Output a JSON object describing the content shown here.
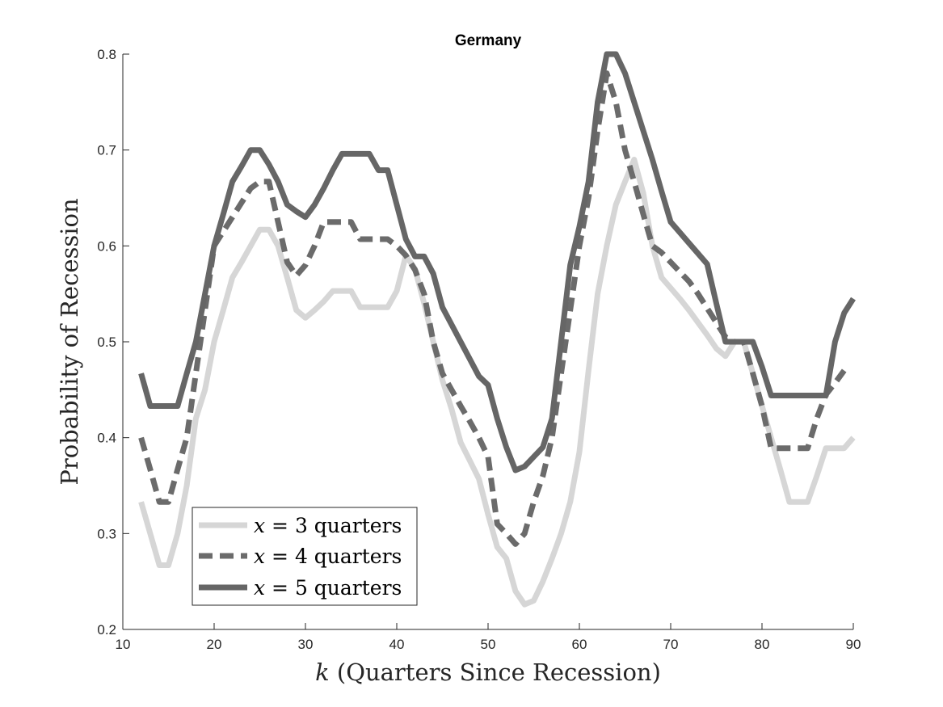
{
  "chart_data": {
    "type": "line",
    "title": "Germany",
    "xlabel_var": "k",
    "xlabel_rest": " (Quarters Since Recession)",
    "ylabel": "Probability of Recession",
    "xlim": [
      10,
      90
    ],
    "ylim": [
      0.2,
      0.8
    ],
    "xticks": [
      10,
      20,
      30,
      40,
      50,
      60,
      70,
      80,
      90
    ],
    "yticks": [
      0.2,
      0.3,
      0.4,
      0.5,
      0.6,
      0.7,
      0.8
    ],
    "legend_position": "bottom-left",
    "grid": false,
    "series": [
      {
        "name": "x = 3 quarters",
        "legend_var": "x",
        "legend_rest": " = 3 quarters",
        "color": "#d6d6d6",
        "style": "solid",
        "points": [
          [
            12,
            0.333
          ],
          [
            13,
            0.3
          ],
          [
            14,
            0.267
          ],
          [
            15,
            0.267
          ],
          [
            16,
            0.3
          ],
          [
            17,
            0.35
          ],
          [
            18,
            0.42
          ],
          [
            19,
            0.45
          ],
          [
            20,
            0.5
          ],
          [
            21,
            0.533
          ],
          [
            22,
            0.567
          ],
          [
            23,
            0.583
          ],
          [
            24,
            0.6
          ],
          [
            25,
            0.617
          ],
          [
            26,
            0.617
          ],
          [
            27,
            0.6
          ],
          [
            28,
            0.567
          ],
          [
            29,
            0.533
          ],
          [
            30,
            0.525
          ],
          [
            31,
            0.533
          ],
          [
            32,
            0.542
          ],
          [
            33,
            0.553
          ],
          [
            34,
            0.553
          ],
          [
            35,
            0.553
          ],
          [
            36,
            0.536
          ],
          [
            37,
            0.536
          ],
          [
            38,
            0.536
          ],
          [
            39,
            0.536
          ],
          [
            40,
            0.553
          ],
          [
            41,
            0.59
          ],
          [
            42,
            0.576
          ],
          [
            43,
            0.54
          ],
          [
            44,
            0.5
          ],
          [
            45,
            0.46
          ],
          [
            46,
            0.43
          ],
          [
            47,
            0.395
          ],
          [
            48,
            0.376
          ],
          [
            49,
            0.357
          ],
          [
            50,
            0.32
          ],
          [
            51,
            0.286
          ],
          [
            52,
            0.274
          ],
          [
            53,
            0.24
          ],
          [
            54,
            0.226
          ],
          [
            55,
            0.23
          ],
          [
            56,
            0.25
          ],
          [
            57,
            0.274
          ],
          [
            58,
            0.3
          ],
          [
            59,
            0.333
          ],
          [
            60,
            0.385
          ],
          [
            61,
            0.47
          ],
          [
            62,
            0.55
          ],
          [
            63,
            0.6
          ],
          [
            64,
            0.643
          ],
          [
            65,
            0.667
          ],
          [
            66,
            0.69
          ],
          [
            67,
            0.655
          ],
          [
            68,
            0.6
          ],
          [
            69,
            0.567
          ],
          [
            70,
            0.556
          ],
          [
            71,
            0.545
          ],
          [
            72,
            0.533
          ],
          [
            73,
            0.52
          ],
          [
            74,
            0.507
          ],
          [
            75,
            0.493
          ],
          [
            76,
            0.485
          ],
          [
            77,
            0.5
          ],
          [
            78,
            0.5
          ],
          [
            79,
            0.467
          ],
          [
            80,
            0.433
          ],
          [
            81,
            0.4
          ],
          [
            82,
            0.367
          ],
          [
            83,
            0.333
          ],
          [
            84,
            0.333
          ],
          [
            85,
            0.333
          ],
          [
            86,
            0.36
          ],
          [
            87,
            0.389
          ],
          [
            88,
            0.389
          ],
          [
            89,
            0.389
          ],
          [
            90,
            0.4
          ]
        ]
      },
      {
        "name": "x = 4 quarters",
        "legend_var": "x",
        "legend_rest": " = 4 quarters",
        "color": "#6b6b6b",
        "style": "dashed",
        "points": [
          [
            12,
            0.4
          ],
          [
            13,
            0.367
          ],
          [
            14,
            0.333
          ],
          [
            15,
            0.333
          ],
          [
            16,
            0.367
          ],
          [
            17,
            0.4
          ],
          [
            18,
            0.467
          ],
          [
            19,
            0.533
          ],
          [
            20,
            0.6
          ],
          [
            21,
            0.615
          ],
          [
            22,
            0.63
          ],
          [
            23,
            0.645
          ],
          [
            24,
            0.66
          ],
          [
            25,
            0.667
          ],
          [
            26,
            0.667
          ],
          [
            27,
            0.625
          ],
          [
            28,
            0.583
          ],
          [
            29,
            0.569
          ],
          [
            30,
            0.58
          ],
          [
            31,
            0.6
          ],
          [
            32,
            0.625
          ],
          [
            33,
            0.625
          ],
          [
            34,
            0.625
          ],
          [
            35,
            0.625
          ],
          [
            36,
            0.607
          ],
          [
            37,
            0.607
          ],
          [
            38,
            0.607
          ],
          [
            39,
            0.607
          ],
          [
            40,
            0.6
          ],
          [
            41,
            0.59
          ],
          [
            42,
            0.575
          ],
          [
            43,
            0.55
          ],
          [
            44,
            0.5
          ],
          [
            45,
            0.467
          ],
          [
            46,
            0.45
          ],
          [
            47,
            0.433
          ],
          [
            48,
            0.417
          ],
          [
            49,
            0.4
          ],
          [
            50,
            0.38
          ],
          [
            51,
            0.31
          ],
          [
            52,
            0.3
          ],
          [
            53,
            0.289
          ],
          [
            54,
            0.3
          ],
          [
            55,
            0.333
          ],
          [
            56,
            0.36
          ],
          [
            57,
            0.4
          ],
          [
            58,
            0.467
          ],
          [
            59,
            0.533
          ],
          [
            60,
            0.6
          ],
          [
            61,
            0.65
          ],
          [
            62,
            0.72
          ],
          [
            63,
            0.78
          ],
          [
            64,
            0.75
          ],
          [
            65,
            0.7
          ],
          [
            66,
            0.667
          ],
          [
            67,
            0.633
          ],
          [
            68,
            0.6
          ],
          [
            69,
            0.593
          ],
          [
            70,
            0.583
          ],
          [
            71,
            0.573
          ],
          [
            72,
            0.563
          ],
          [
            73,
            0.55
          ],
          [
            74,
            0.535
          ],
          [
            75,
            0.52
          ],
          [
            76,
            0.505
          ],
          [
            77,
            0.5
          ],
          [
            78,
            0.5
          ],
          [
            79,
            0.467
          ],
          [
            80,
            0.433
          ],
          [
            81,
            0.389
          ],
          [
            82,
            0.389
          ],
          [
            83,
            0.389
          ],
          [
            84,
            0.389
          ],
          [
            85,
            0.389
          ],
          [
            86,
            0.42
          ],
          [
            87,
            0.445
          ],
          [
            88,
            0.457
          ],
          [
            89,
            0.47
          ]
        ]
      },
      {
        "name": "x = 5 quarters",
        "legend_var": "x",
        "legend_rest": " = 5 quarters",
        "color": "#666666",
        "style": "solid",
        "points": [
          [
            12,
            0.467
          ],
          [
            13,
            0.433
          ],
          [
            14,
            0.433
          ],
          [
            15,
            0.433
          ],
          [
            16,
            0.433
          ],
          [
            17,
            0.467
          ],
          [
            18,
            0.5
          ],
          [
            19,
            0.55
          ],
          [
            20,
            0.6
          ],
          [
            21,
            0.633
          ],
          [
            22,
            0.667
          ],
          [
            23,
            0.683
          ],
          [
            24,
            0.7
          ],
          [
            25,
            0.7
          ],
          [
            26,
            0.685
          ],
          [
            27,
            0.667
          ],
          [
            28,
            0.643
          ],
          [
            29,
            0.636
          ],
          [
            30,
            0.63
          ],
          [
            31,
            0.643
          ],
          [
            32,
            0.66
          ],
          [
            33,
            0.679
          ],
          [
            34,
            0.696
          ],
          [
            35,
            0.696
          ],
          [
            36,
            0.696
          ],
          [
            37,
            0.696
          ],
          [
            38,
            0.679
          ],
          [
            39,
            0.679
          ],
          [
            40,
            0.643
          ],
          [
            41,
            0.607
          ],
          [
            42,
            0.589
          ],
          [
            43,
            0.589
          ],
          [
            44,
            0.571
          ],
          [
            45,
            0.536
          ],
          [
            46,
            0.518
          ],
          [
            47,
            0.5
          ],
          [
            48,
            0.482
          ],
          [
            49,
            0.464
          ],
          [
            50,
            0.455
          ],
          [
            51,
            0.42
          ],
          [
            52,
            0.39
          ],
          [
            53,
            0.366
          ],
          [
            54,
            0.37
          ],
          [
            55,
            0.38
          ],
          [
            56,
            0.39
          ],
          [
            57,
            0.42
          ],
          [
            58,
            0.5
          ],
          [
            59,
            0.58
          ],
          [
            60,
            0.62
          ],
          [
            61,
            0.667
          ],
          [
            62,
            0.75
          ],
          [
            63,
            0.8
          ],
          [
            64,
            0.8
          ],
          [
            65,
            0.78
          ],
          [
            66,
            0.75
          ],
          [
            67,
            0.72
          ],
          [
            68,
            0.69
          ],
          [
            69,
            0.657
          ],
          [
            70,
            0.625
          ],
          [
            71,
            0.614
          ],
          [
            72,
            0.603
          ],
          [
            73,
            0.592
          ],
          [
            74,
            0.581
          ],
          [
            75,
            0.54
          ],
          [
            76,
            0.5
          ],
          [
            77,
            0.5
          ],
          [
            78,
            0.5
          ],
          [
            79,
            0.5
          ],
          [
            80,
            0.474
          ],
          [
            81,
            0.444
          ],
          [
            82,
            0.444
          ],
          [
            83,
            0.444
          ],
          [
            84,
            0.444
          ],
          [
            85,
            0.444
          ],
          [
            86,
            0.444
          ],
          [
            87,
            0.444
          ],
          [
            88,
            0.5
          ],
          [
            89,
            0.53
          ],
          [
            90,
            0.545
          ]
        ]
      }
    ]
  }
}
